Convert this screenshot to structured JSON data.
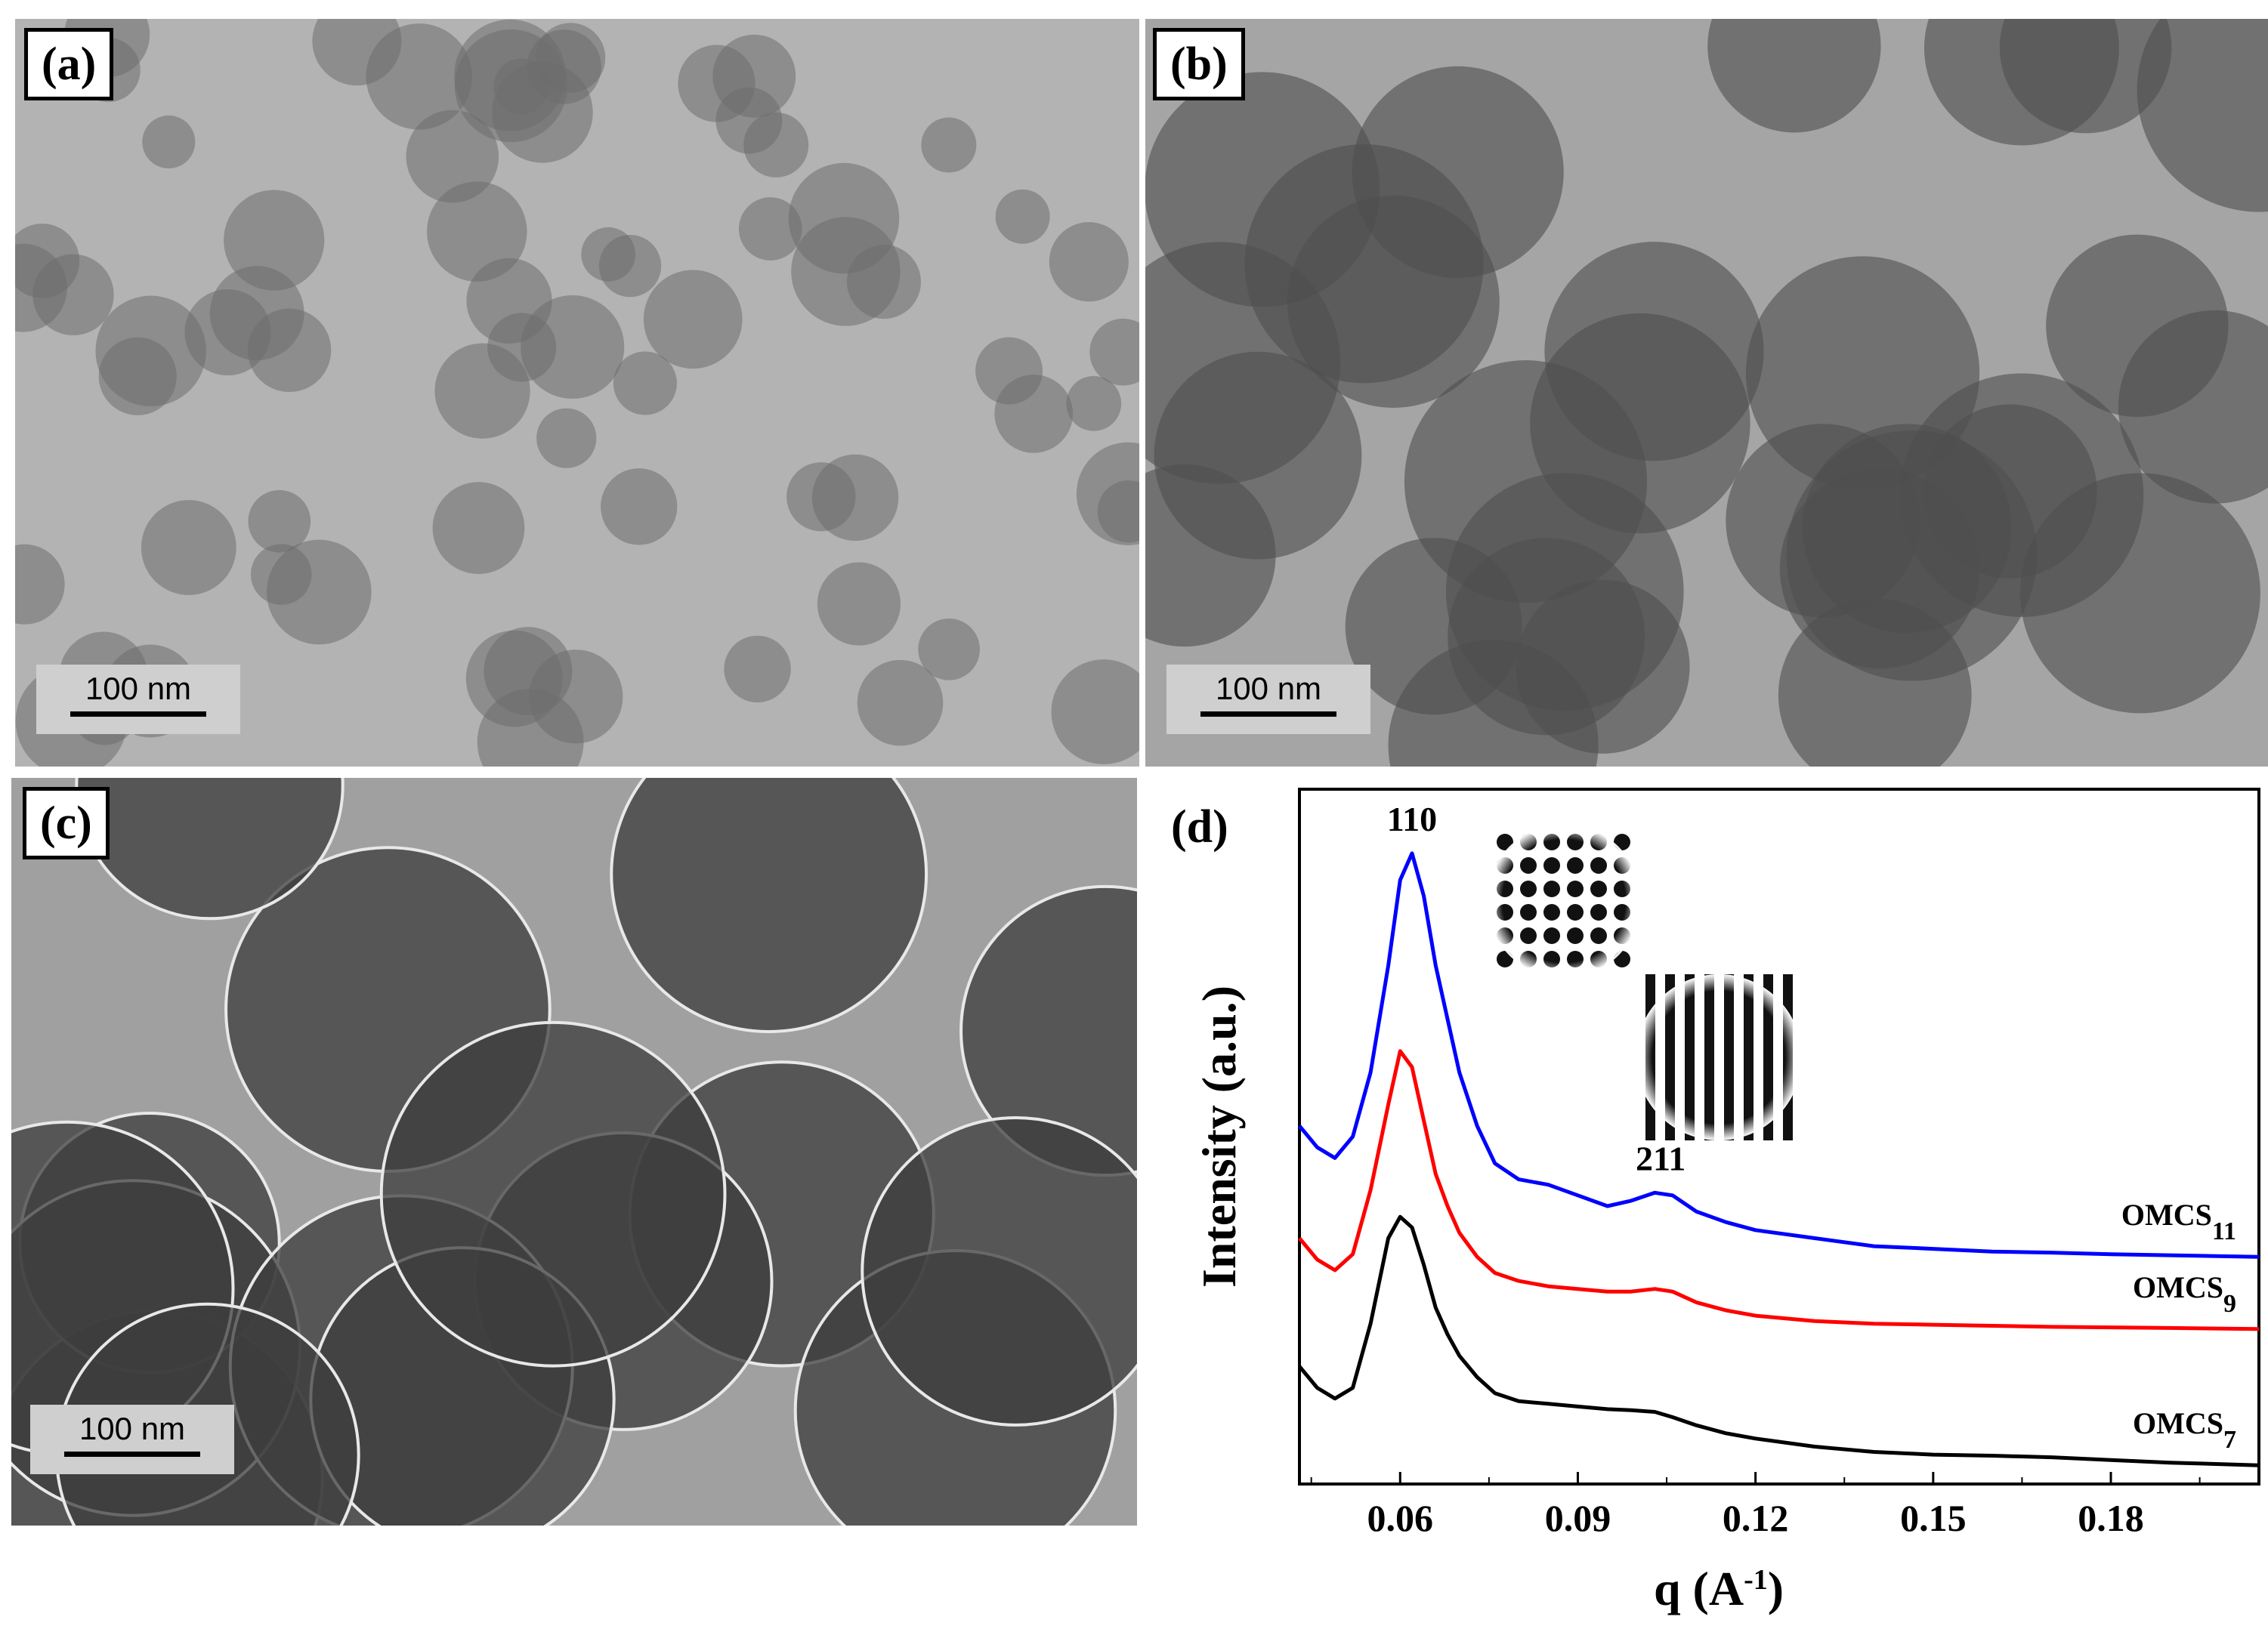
{
  "panels": {
    "a": {
      "label": "(a)",
      "scale_bar": "100 nm"
    },
    "b": {
      "label": "(b)",
      "scale_bar": "100 nm"
    },
    "c": {
      "label": "(c)",
      "scale_bar": "100 nm"
    },
    "d": {
      "label": "(d)"
    }
  },
  "chart_data": {
    "type": "line",
    "xlabel": "q (A",
    "xlabel_superscript": "-1",
    "xlabel_tail": ")",
    "ylabel": "Intensity (a.u.)",
    "xlim": [
      0.043,
      0.205
    ],
    "x_ticks": [
      0.06,
      0.09,
      0.12,
      0.15,
      0.18
    ],
    "x_tick_labels": [
      "0.06",
      "0.09",
      "0.12",
      "0.15",
      "0.18"
    ],
    "y_ticks": [],
    "peak_labels": [
      {
        "text": "110",
        "x": 0.062
      },
      {
        "text": "211",
        "x": 0.104
      }
    ],
    "series": [
      {
        "name": "OMCS",
        "subscript": "11",
        "color": "#0000ff",
        "x": [
          0.043,
          0.046,
          0.049,
          0.052,
          0.055,
          0.058,
          0.06,
          0.062,
          0.064,
          0.066,
          0.068,
          0.07,
          0.073,
          0.076,
          0.08,
          0.085,
          0.09,
          0.095,
          0.099,
          0.103,
          0.106,
          0.11,
          0.115,
          0.12,
          0.13,
          0.14,
          0.15,
          0.16,
          0.17,
          0.18,
          0.19,
          0.205
        ],
        "y": [
          0.62,
          0.58,
          0.56,
          0.6,
          0.72,
          0.92,
          1.08,
          1.13,
          1.05,
          0.92,
          0.82,
          0.72,
          0.62,
          0.55,
          0.52,
          0.51,
          0.49,
          0.47,
          0.48,
          0.495,
          0.49,
          0.46,
          0.44,
          0.425,
          0.41,
          0.395,
          0.39,
          0.385,
          0.383,
          0.38,
          0.378,
          0.375
        ]
      },
      {
        "name": "OMCS",
        "subscript": "9",
        "color": "#ff0000",
        "x": [
          0.043,
          0.046,
          0.049,
          0.052,
          0.055,
          0.058,
          0.06,
          0.062,
          0.064,
          0.066,
          0.068,
          0.07,
          0.073,
          0.076,
          0.08,
          0.085,
          0.09,
          0.095,
          0.099,
          0.103,
          0.106,
          0.11,
          0.115,
          0.12,
          0.13,
          0.14,
          0.15,
          0.16,
          0.17,
          0.18,
          0.19,
          0.205
        ],
        "y": [
          0.41,
          0.37,
          0.35,
          0.38,
          0.5,
          0.66,
          0.76,
          0.73,
          0.63,
          0.53,
          0.47,
          0.42,
          0.375,
          0.345,
          0.33,
          0.32,
          0.315,
          0.31,
          0.31,
          0.315,
          0.31,
          0.29,
          0.275,
          0.265,
          0.255,
          0.25,
          0.248,
          0.246,
          0.244,
          0.243,
          0.242,
          0.24
        ]
      },
      {
        "name": "OMCS",
        "subscript": "7",
        "color": "#000000",
        "x": [
          0.043,
          0.046,
          0.049,
          0.052,
          0.055,
          0.058,
          0.06,
          0.062,
          0.064,
          0.066,
          0.068,
          0.07,
          0.073,
          0.076,
          0.08,
          0.085,
          0.09,
          0.095,
          0.099,
          0.103,
          0.106,
          0.11,
          0.115,
          0.12,
          0.13,
          0.14,
          0.15,
          0.16,
          0.17,
          0.18,
          0.19,
          0.205
        ],
        "y": [
          0.17,
          0.13,
          0.11,
          0.13,
          0.25,
          0.41,
          0.45,
          0.43,
          0.36,
          0.28,
          0.23,
          0.19,
          0.15,
          0.12,
          0.105,
          0.1,
          0.095,
          0.09,
          0.088,
          0.085,
          0.075,
          0.06,
          0.045,
          0.035,
          0.02,
          0.01,
          0.005,
          0.003,
          0.0,
          -0.005,
          -0.01,
          -0.015
        ]
      }
    ]
  }
}
